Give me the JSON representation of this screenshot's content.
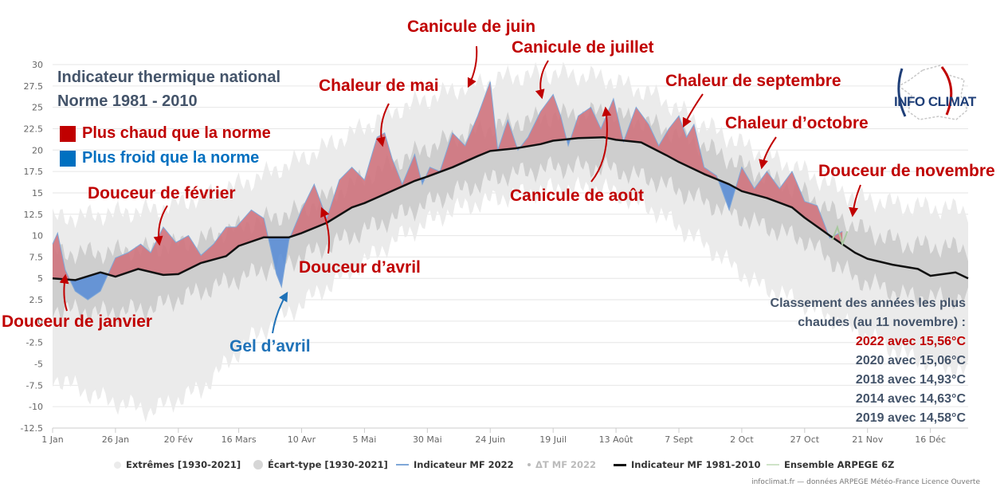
{
  "titles": {
    "line1": "Indicateur thermique national",
    "line2": "Norme 1981 - 2010"
  },
  "keys": {
    "warm": "Plus chaud que la norme",
    "cold": "Plus froid que la norme",
    "warm_color": "#c00000",
    "cold_color": "#0070c0"
  },
  "annotations": {
    "jan": "Douceur de janvier",
    "feb": "Douceur de février",
    "gel": "Gel d’avril",
    "apr": "Douceur d’avril",
    "may": "Chaleur de mai",
    "jun": "Canicule de juin",
    "jul": "Canicule de juillet",
    "aug": "Canicule de août",
    "sep": "Chaleur de septembre",
    "oct": "Chaleur d’octobre",
    "nov": "Douceur de novembre"
  },
  "ranking": {
    "header1": "Classement des années les plus",
    "header2": "chaudes (au 11 novembre) :",
    "rows": [
      "2022 avec 15,56°C",
      "2020 avec 15,06°C",
      "2018 avec 14,93°C",
      "2014 avec 14,63°C",
      "2019 avec 14,58°C"
    ],
    "highlight_color": "#c00000"
  },
  "logo": {
    "text": "INFO CLIMAT",
    "icon": "france-map-logo-icon"
  },
  "legend": {
    "extremes": "Extrêmes [1930-2021]",
    "stddev": "Écart-type [1930-2021]",
    "mf2022": "Indicateur MF 2022",
    "delta": "ΔT MF 2022",
    "norm": "Indicateur MF 1981-2010",
    "arpege": "Ensemble ARPEGE 6Z"
  },
  "credit": "infoclimat.fr — données ARPEGE Météo-France Licence Ouverte",
  "chart_data": {
    "type": "area",
    "xlabel": "",
    "ylabel": "",
    "ylim": [
      -12.5,
      30
    ],
    "yticks": [
      -12.5,
      -10,
      -7.5,
      -5,
      -2.5,
      0,
      2.5,
      5,
      7.5,
      10,
      12.5,
      15,
      17.5,
      20,
      22.5,
      25,
      27.5,
      30
    ],
    "xlim": [
      1,
      365
    ],
    "x_ticks": [
      {
        "day": 1,
        "label": "1 Jan"
      },
      {
        "day": 26,
        "label": "26 Jan"
      },
      {
        "day": 51,
        "label": "20 Fév"
      },
      {
        "day": 75,
        "label": "16 Mars"
      },
      {
        "day": 100,
        "label": "10 Avr"
      },
      {
        "day": 125,
        "label": "5 Mai"
      },
      {
        "day": 150,
        "label": "30 Mai"
      },
      {
        "day": 175,
        "label": "24 Juin"
      },
      {
        "day": 200,
        "label": "19 Juil"
      },
      {
        "day": 225,
        "label": "13 Août"
      },
      {
        "day": 250,
        "label": "7 Sept"
      },
      {
        "day": 275,
        "label": "2 Oct"
      },
      {
        "day": 300,
        "label": "27 Oct"
      },
      {
        "day": 325,
        "label": "21 Nov"
      },
      {
        "day": 350,
        "label": "16 Déc"
      }
    ],
    "grid": true,
    "legend_position": "bottom",
    "colors": {
      "extremes": "#ebebeb",
      "stddev": "#c9c9c9",
      "norm": "#111111",
      "mf2022": "#7fa7d8",
      "warm_fill": "#d0747e",
      "cold_fill": "#5b8ed6",
      "arpege": "#a8c8a0"
    },
    "series": [
      {
        "name": "Indicateur MF 1981-2010",
        "x": [
          1,
          10,
          20,
          26,
          35,
          45,
          51,
          60,
          70,
          75,
          85,
          95,
          100,
          110,
          120,
          125,
          135,
          145,
          150,
          160,
          170,
          175,
          185,
          195,
          200,
          210,
          220,
          225,
          235,
          245,
          250,
          260,
          270,
          275,
          285,
          295,
          300,
          310,
          320,
          325,
          335,
          345,
          350,
          360,
          365
        ],
        "y": [
          5.0,
          4.8,
          5.7,
          5.2,
          6.1,
          5.4,
          5.5,
          6.8,
          7.6,
          8.8,
          9.8,
          9.8,
          10.3,
          11.5,
          13.3,
          13.8,
          15.1,
          16.4,
          16.9,
          18.0,
          19.3,
          19.9,
          20.2,
          20.7,
          21.1,
          21.4,
          21.5,
          21.2,
          20.9,
          19.4,
          18.6,
          17.2,
          16.0,
          15.2,
          14.4,
          13.3,
          12.1,
          10.0,
          8.0,
          7.3,
          6.6,
          6.1,
          5.3,
          5.7,
          5.0
        ]
      },
      {
        "name": "Indicateur MF 2022",
        "x": [
          1,
          3,
          6,
          10,
          15,
          20,
          26,
          31,
          36,
          40,
          45,
          50,
          55,
          60,
          65,
          70,
          74,
          80,
          85,
          90,
          92,
          95,
          100,
          105,
          110,
          115,
          120,
          125,
          130,
          133,
          136,
          140,
          145,
          148,
          151,
          155,
          160,
          165,
          170,
          175,
          178,
          182,
          186,
          190,
          195,
          200,
          203,
          206,
          210,
          215,
          219,
          224,
          228,
          233,
          238,
          242,
          246,
          250,
          253,
          256,
          260,
          265,
          270,
          275,
          280,
          285,
          290,
          295,
          300,
          305,
          310,
          315
        ],
        "y": [
          9.0,
          10.3,
          6.0,
          3.5,
          2.5,
          3.5,
          7.4,
          8.0,
          9.0,
          8.0,
          11.0,
          9.2,
          10.0,
          7.7,
          9.0,
          11.0,
          11.0,
          13.0,
          12.0,
          5.5,
          4.0,
          9.5,
          13.0,
          16.0,
          12.0,
          16.5,
          18.0,
          16.5,
          21.5,
          22.0,
          19.0,
          16.0,
          19.5,
          16.0,
          18.0,
          17.5,
          22.0,
          20.5,
          24.0,
          28.0,
          20.0,
          23.5,
          20.0,
          21.5,
          24.5,
          26.5,
          24.0,
          20.5,
          24.0,
          25.0,
          22.5,
          26.0,
          21.0,
          25.0,
          23.0,
          20.5,
          22.5,
          24.0,
          21.5,
          23.0,
          18.0,
          17.0,
          13.0,
          18.0,
          15.5,
          17.5,
          15.5,
          17.5,
          14.0,
          13.5,
          9.7,
          10.5
        ]
      },
      {
        "name": "Extrêmes [1930-2021]",
        "x": [
          1,
          20,
          40,
          60,
          80,
          100,
          120,
          140,
          160,
          180,
          200,
          220,
          240,
          260,
          280,
          300,
          320,
          340,
          365
        ],
        "low": [
          -6.5,
          -9.0,
          -10.5,
          -8.0,
          -2.0,
          2.0,
          6.0,
          10.0,
          13.0,
          14.5,
          15.5,
          15.5,
          13.0,
          9.0,
          4.5,
          2.0,
          -1.0,
          -4.0,
          -6.0
        ],
        "high": [
          12.0,
          12.5,
          13.0,
          14.5,
          16.5,
          19.0,
          22.0,
          25.0,
          27.0,
          28.5,
          29.0,
          28.5,
          26.5,
          23.0,
          20.0,
          17.5,
          14.5,
          13.5,
          13.0
        ]
      },
      {
        "name": "Écart-type [1930-2021]",
        "x": [
          1,
          20,
          40,
          60,
          80,
          100,
          120,
          140,
          160,
          180,
          200,
          220,
          240,
          260,
          280,
          300,
          320,
          340,
          365
        ],
        "low": [
          1.5,
          1.0,
          1.5,
          3.5,
          5.5,
          7.5,
          10.0,
          12.5,
          15.0,
          17.0,
          18.0,
          18.0,
          16.5,
          14.0,
          11.5,
          9.5,
          5.0,
          3.0,
          2.5
        ],
        "high": [
          8.0,
          8.0,
          8.5,
          9.5,
          11.5,
          13.0,
          16.0,
          19.0,
          21.5,
          23.0,
          24.0,
          24.5,
          23.0,
          20.5,
          17.5,
          15.0,
          11.0,
          9.0,
          8.5
        ]
      },
      {
        "name": "Ensemble ARPEGE 6Z",
        "x": [
          311,
          313,
          315,
          317
        ],
        "y": [
          9.5,
          11.0,
          9.0,
          10.5
        ]
      }
    ]
  }
}
